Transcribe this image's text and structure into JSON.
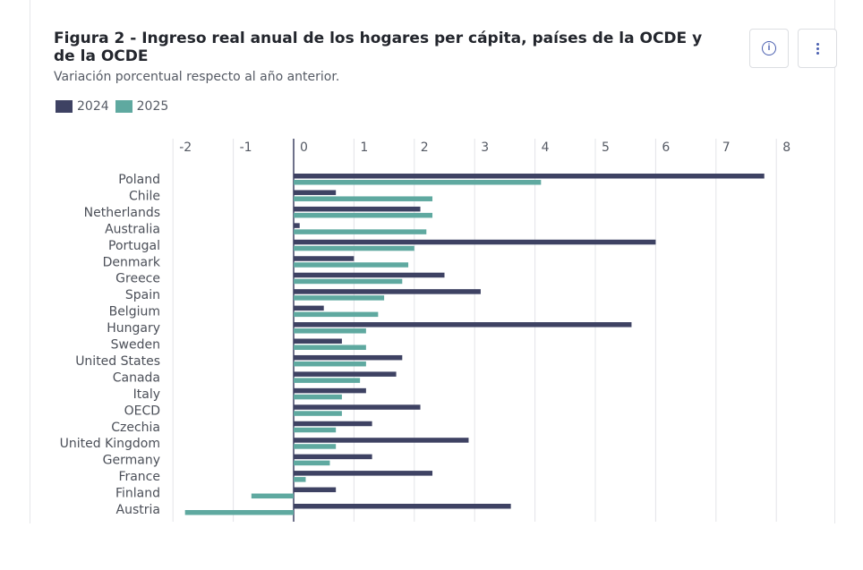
{
  "header": {
    "title": "Figura 2 - Ingreso real anual de los hogares per cápita, países de la OCDE y de la OCDE",
    "subtitle": "Variación porcentual respecto al año anterior."
  },
  "toolbar": {
    "info_icon": "info-icon",
    "menu_icon": "vertical-dots-icon"
  },
  "colors": {
    "series_2024": "#3e4263",
    "series_2025": "#5fa9a0",
    "gridline": "#e3e4e8",
    "zero_line": "#3e4263"
  },
  "chart_data": {
    "type": "bar",
    "orientation": "horizontal",
    "legend_position": "top-left",
    "grid": true,
    "xlim": [
      -2,
      8
    ],
    "xticks": [
      -2,
      -1,
      0,
      1,
      2,
      3,
      4,
      5,
      6,
      7,
      8
    ],
    "xlabel": "",
    "ylabel": "",
    "categories": [
      "Poland",
      "Chile",
      "Netherlands",
      "Australia",
      "Portugal",
      "Denmark",
      "Greece",
      "Spain",
      "Belgium",
      "Hungary",
      "Sweden",
      "United States",
      "Canada",
      "Italy",
      "OECD",
      "Czechia",
      "United Kingdom",
      "Germany",
      "France",
      "Finland",
      "Austria"
    ],
    "series": [
      {
        "name": "2024",
        "values": [
          7.8,
          0.7,
          2.1,
          0.1,
          6.0,
          1.0,
          2.5,
          3.1,
          0.5,
          5.6,
          0.8,
          1.8,
          1.7,
          1.2,
          2.1,
          1.3,
          2.9,
          1.3,
          2.3,
          0.7,
          3.6
        ]
      },
      {
        "name": "2025",
        "values": [
          4.1,
          2.3,
          2.3,
          2.2,
          2.0,
          1.9,
          1.8,
          1.5,
          1.4,
          1.2,
          1.2,
          1.2,
          1.1,
          0.8,
          0.8,
          0.7,
          0.7,
          0.6,
          0.2,
          -0.7,
          -1.8
        ]
      }
    ]
  }
}
